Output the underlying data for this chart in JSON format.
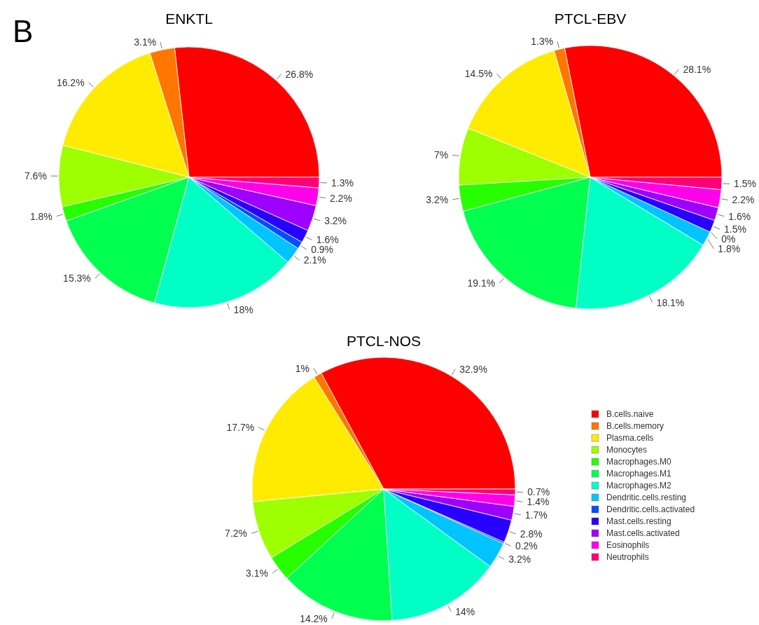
{
  "chart_data": [
    {
      "type": "pie",
      "title": "ENKTL",
      "annotations": [
        "B"
      ],
      "categories": [
        null,
        null,
        null,
        null,
        null,
        null,
        null,
        null,
        null,
        null,
        null,
        null,
        null
      ],
      "values": [
        26.8,
        3.1,
        16.2,
        7.6,
        1.8,
        15.3,
        18,
        2.1,
        0.9,
        1.6,
        3.2,
        2.2,
        1.3
      ],
      "value_labels": [
        "26.8%",
        "3.1%",
        "16.2%",
        "7.6%",
        "1.8%",
        "15.3%",
        "18%",
        "2.1%",
        "0.9%",
        "1.6%",
        "3.2%",
        "2.2%",
        "1.3%"
      ],
      "colors": [
        "#ff0000",
        "#ff7600",
        "#ffeb00",
        "#9dff00",
        "#27ff00",
        "#00ff4e",
        "#00ffc4",
        "#00c4ff",
        "#004eff",
        "#2700ff",
        "#9d00ff",
        "#ff00eb",
        "#ff0076"
      ]
    },
    {
      "type": "pie",
      "title": "PTCL-EBV",
      "categories": [
        null,
        null,
        null,
        null,
        null,
        null,
        null,
        null,
        null,
        null,
        null,
        null,
        null
      ],
      "values": [
        28.1,
        1.3,
        14.5,
        7,
        3.2,
        19.1,
        18.1,
        1.8,
        0,
        1.5,
        1.6,
        2.2,
        1.5
      ],
      "value_labels": [
        "28.1%",
        "1.3%",
        "14.5%",
        "7%",
        "3.2%",
        "19.1%",
        "18.1%",
        "1.8%",
        "0%",
        "1.5%",
        "1.6%",
        "2.2%",
        "1.5%"
      ],
      "colors": [
        "#ff0000",
        "#ff7600",
        "#ffeb00",
        "#9dff00",
        "#27ff00",
        "#00ff4e",
        "#00ffc4",
        "#00c4ff",
        "#004eff",
        "#2700ff",
        "#9d00ff",
        "#ff00eb",
        "#ff0076"
      ]
    },
    {
      "type": "pie",
      "title": "PTCL-NOS",
      "legend": "right",
      "categories": [
        "B.cells.naive",
        "B.cells.memory",
        "Plasma.cells",
        "Monocytes",
        "Macrophages.M0",
        "Macrophages.M1",
        "Macrophages.M2",
        "Dendritic.cells.resting",
        "Dendritic.cells.activated",
        "Mast.cells.resting",
        "Mast.cells.activated",
        "Eosinophils",
        "Neutrophils"
      ],
      "values": [
        32.9,
        1,
        17.7,
        7.2,
        3.1,
        14.2,
        14,
        3.2,
        0.2,
        2.8,
        1.7,
        1.4,
        0.7
      ],
      "value_labels": [
        "32.9%",
        "1%",
        "17.7%",
        "7.2%",
        "3.1%",
        "14.2%",
        "14%",
        "3.2%",
        "0.2%",
        "2.8%",
        "1.7%",
        "1.4%",
        "0.7%"
      ],
      "colors": [
        "#ff0000",
        "#ff7600",
        "#ffeb00",
        "#9dff00",
        "#27ff00",
        "#00ff4e",
        "#00ffc4",
        "#00c4ff",
        "#004eff",
        "#2700ff",
        "#9d00ff",
        "#ff00eb",
        "#ff0076"
      ]
    }
  ]
}
